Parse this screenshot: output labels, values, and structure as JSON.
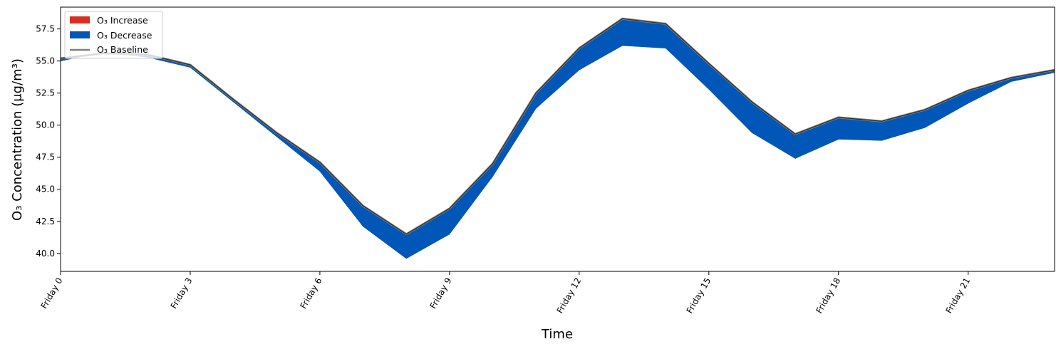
{
  "chart_data": {
    "type": "area",
    "xlabel": "Time",
    "ylabel": "O₃ Concentration (μg/m³)",
    "x": [
      0,
      1,
      2,
      3,
      4,
      5,
      6,
      7,
      8,
      9,
      10,
      11,
      12,
      13,
      14,
      15,
      16,
      17,
      18,
      19,
      20,
      21,
      22,
      23
    ],
    "xlim": [
      0,
      23
    ],
    "ylim": [
      38.6,
      59.2
    ],
    "x_ticks": [
      {
        "value": 0,
        "label": "Friday 0"
      },
      {
        "value": 3,
        "label": "Friday 3"
      },
      {
        "value": 6,
        "label": "Friday 6"
      },
      {
        "value": 9,
        "label": "Friday 9"
      },
      {
        "value": 12,
        "label": "Friday 12"
      },
      {
        "value": 15,
        "label": "Friday 15"
      },
      {
        "value": 18,
        "label": "Friday 18"
      },
      {
        "value": 21,
        "label": "Friday 21"
      }
    ],
    "y_ticks": [
      {
        "value": 40.0,
        "label": "40.0"
      },
      {
        "value": 42.5,
        "label": "42.5"
      },
      {
        "value": 45.0,
        "label": "45.0"
      },
      {
        "value": 47.5,
        "label": "47.5"
      },
      {
        "value": 50.0,
        "label": "50.0"
      },
      {
        "value": 52.5,
        "label": "52.5"
      },
      {
        "value": 55.0,
        "label": "55.0"
      },
      {
        "value": 57.5,
        "label": "57.5"
      }
    ],
    "baseline": [
      55.2,
      55.6,
      55.5,
      54.7,
      52.0,
      49.4,
      47.1,
      43.7,
      41.5,
      43.5,
      47.0,
      52.5,
      56.0,
      58.3,
      57.9,
      54.8,
      51.8,
      49.3,
      50.6,
      50.3,
      51.2,
      52.7,
      53.7,
      54.3
    ],
    "scenario": [
      55.0,
      55.7,
      55.3,
      54.5,
      51.8,
      49.1,
      46.4,
      42.1,
      39.6,
      41.5,
      46.0,
      51.3,
      54.3,
      56.2,
      56.0,
      52.8,
      49.4,
      47.4,
      48.9,
      48.8,
      49.8,
      51.7,
      53.4,
      54.1
    ],
    "legend": {
      "position": "upper-left",
      "entries": [
        {
          "label": "O₃ Increase",
          "color": "#d7301f",
          "kind": "patch"
        },
        {
          "label": "O₃ Decrease",
          "color": "#0057b7",
          "kind": "patch"
        },
        {
          "label": "O₃ Baseline",
          "color": "#808080",
          "kind": "line"
        }
      ]
    },
    "colors": {
      "increase": "#d7301f",
      "decrease": "#0057b7",
      "baseline": "#808080"
    }
  }
}
